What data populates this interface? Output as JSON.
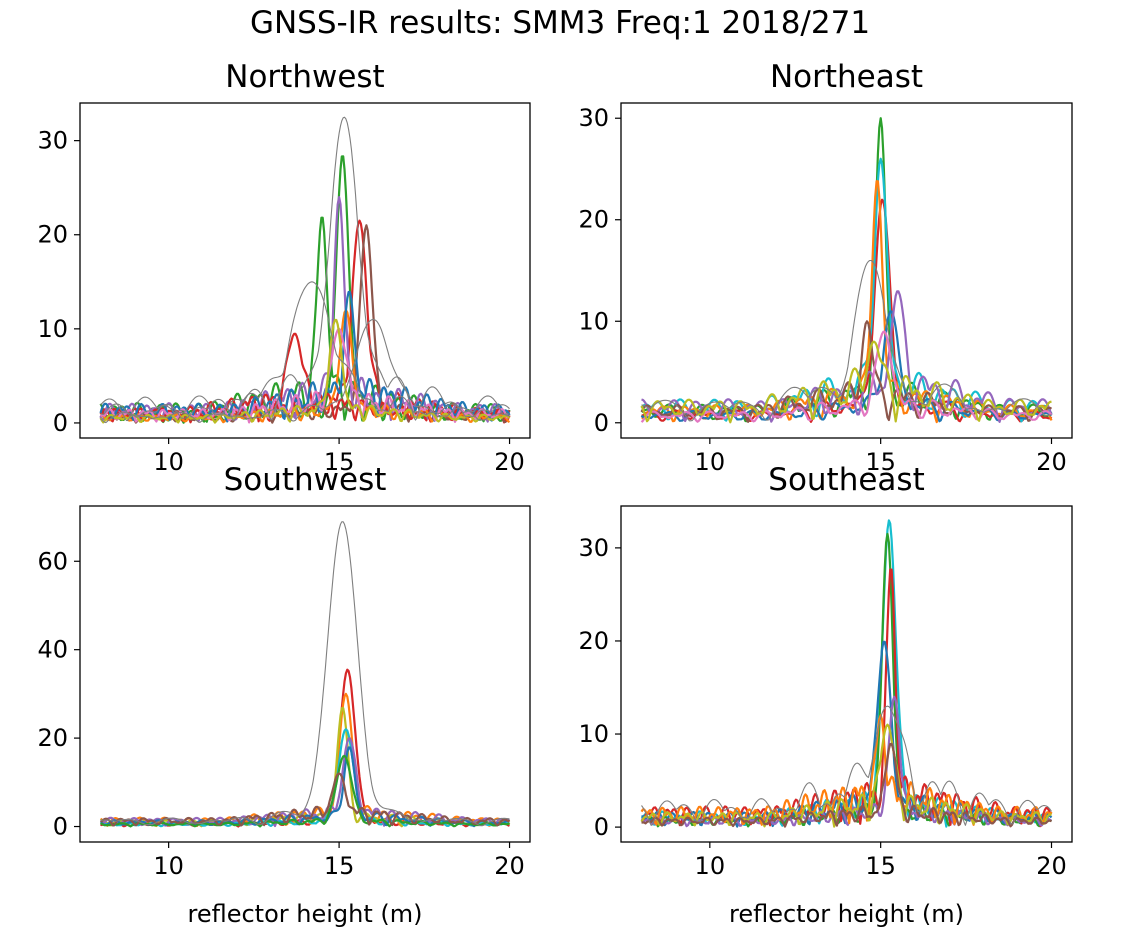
{
  "figure": {
    "suptitle": "GNSS-IR results: SMM3 Freq:1 2018/271"
  },
  "palette": [
    "#1f77b4",
    "#ff7f0e",
    "#2ca02c",
    "#d62728",
    "#9467bd",
    "#8c564b",
    "#e377c2",
    "#7f7f7f",
    "#bcbd22",
    "#17becf"
  ],
  "chart_data": [
    {
      "type": "line",
      "title": "Northwest",
      "xlabel": "",
      "ylabel": "",
      "xlim": [
        7.4,
        20.6
      ],
      "ylim": [
        -1.6,
        34.0
      ],
      "xticks": [
        10,
        15,
        20
      ],
      "yticks": [
        0,
        10,
        20,
        30
      ],
      "peak_height_m": 15.1,
      "series": [
        {
          "color": "#2ca02c",
          "width": 2.2,
          "peak": 15.1,
          "amplitude": 28.5
        },
        {
          "color": "#2ca02c",
          "width": 2.2,
          "peak": 14.5,
          "amplitude": 22.0
        },
        {
          "color": "#d62728",
          "width": 2.2,
          "peak": 15.6,
          "amplitude": 21.5
        },
        {
          "color": "#8c564b",
          "width": 2.2,
          "peak": 15.8,
          "amplitude": 21.0
        },
        {
          "color": "#9467bd",
          "width": 2.2,
          "peak": 15.0,
          "amplitude": 24.0
        },
        {
          "color": "#d62728",
          "width": 2.2,
          "peak": 13.7,
          "amplitude": 9.5
        },
        {
          "color": "#ff7f0e",
          "width": 2.2,
          "peak": 15.2,
          "amplitude": 12.0
        },
        {
          "color": "#1f77b4",
          "width": 2.2,
          "peak": 15.3,
          "amplitude": 14.0
        },
        {
          "color": "#e377c2",
          "width": 2.2,
          "peak": 15.0,
          "amplitude": 10.0
        },
        {
          "color": "#bcbd22",
          "width": 2.2,
          "peak": 14.9,
          "amplitude": 11.0
        },
        {
          "color": "#7f7f7f",
          "width": 1.1,
          "peak": 15.15,
          "amplitude": 32.5
        },
        {
          "color": "#7f7f7f",
          "width": 1.1,
          "peak": 14.2,
          "amplitude": 15.0
        },
        {
          "color": "#7f7f7f",
          "width": 1.1,
          "peak": 16.0,
          "amplitude": 11.0
        }
      ]
    },
    {
      "type": "line",
      "title": "Northeast",
      "xlabel": "",
      "ylabel": "",
      "xlim": [
        7.4,
        20.6
      ],
      "ylim": [
        -1.5,
        31.5
      ],
      "xticks": [
        10,
        15,
        20
      ],
      "yticks": [
        0,
        10,
        20,
        30
      ],
      "peak_height_m": 15.0,
      "series": [
        {
          "color": "#2ca02c",
          "width": 2.2,
          "peak": 15.0,
          "amplitude": 30.0
        },
        {
          "color": "#d62728",
          "width": 2.2,
          "peak": 15.05,
          "amplitude": 22.0
        },
        {
          "color": "#17becf",
          "width": 2.2,
          "peak": 15.0,
          "amplitude": 26.0
        },
        {
          "color": "#ff7f0e",
          "width": 2.2,
          "peak": 14.9,
          "amplitude": 24.0
        },
        {
          "color": "#1f77b4",
          "width": 2.2,
          "peak": 15.3,
          "amplitude": 11.0
        },
        {
          "color": "#9467bd",
          "width": 2.2,
          "peak": 15.5,
          "amplitude": 13.0
        },
        {
          "color": "#8c564b",
          "width": 2.2,
          "peak": 14.6,
          "amplitude": 10.0
        },
        {
          "color": "#e377c2",
          "width": 2.2,
          "peak": 15.1,
          "amplitude": 9.0
        },
        {
          "color": "#bcbd22",
          "width": 2.2,
          "peak": 14.8,
          "amplitude": 8.0
        },
        {
          "color": "#7f7f7f",
          "width": 1.1,
          "peak": 14.7,
          "amplitude": 16.0
        }
      ]
    },
    {
      "type": "line",
      "title": "Southwest",
      "xlabel": "reflector height (m)",
      "ylabel": "",
      "xlim": [
        7.4,
        20.6
      ],
      "ylim": [
        -3.5,
        72.5
      ],
      "xticks": [
        10,
        15,
        20
      ],
      "yticks": [
        0,
        20,
        40,
        60
      ],
      "peak_height_m": 15.2,
      "series": [
        {
          "color": "#d62728",
          "width": 2.2,
          "peak": 15.25,
          "amplitude": 35.5
        },
        {
          "color": "#ff7f0e",
          "width": 2.2,
          "peak": 15.2,
          "amplitude": 30.0
        },
        {
          "color": "#bcbd22",
          "width": 2.2,
          "peak": 15.1,
          "amplitude": 27.0
        },
        {
          "color": "#17becf",
          "width": 2.2,
          "peak": 15.2,
          "amplitude": 22.0
        },
        {
          "color": "#9467bd",
          "width": 2.2,
          "peak": 15.3,
          "amplitude": 20.0
        },
        {
          "color": "#1f77b4",
          "width": 2.2,
          "peak": 15.3,
          "amplitude": 18.0
        },
        {
          "color": "#2ca02c",
          "width": 2.2,
          "peak": 15.15,
          "amplitude": 16.0
        },
        {
          "color": "#8c564b",
          "width": 2.2,
          "peak": 15.0,
          "amplitude": 12.0
        },
        {
          "color": "#7f7f7f",
          "width": 1.1,
          "peak": 15.1,
          "amplitude": 69.0
        }
      ]
    },
    {
      "type": "line",
      "title": "Southeast",
      "xlabel": "reflector height (m)",
      "ylabel": "",
      "xlim": [
        7.4,
        20.6
      ],
      "ylim": [
        -1.6,
        34.5
      ],
      "xticks": [
        10,
        15,
        20
      ],
      "yticks": [
        0,
        10,
        20,
        30
      ],
      "peak_height_m": 15.25,
      "series": [
        {
          "color": "#17becf",
          "width": 2.2,
          "peak": 15.25,
          "amplitude": 33.0
        },
        {
          "color": "#2ca02c",
          "width": 2.2,
          "peak": 15.2,
          "amplitude": 31.5
        },
        {
          "color": "#d62728",
          "width": 2.2,
          "peak": 15.3,
          "amplitude": 28.0
        },
        {
          "color": "#1f77b4",
          "width": 2.2,
          "peak": 15.1,
          "amplitude": 20.0
        },
        {
          "color": "#9467bd",
          "width": 2.2,
          "peak": 15.4,
          "amplitude": 14.0
        },
        {
          "color": "#ff7f0e",
          "width": 2.2,
          "peak": 15.0,
          "amplitude": 12.0
        },
        {
          "color": "#bcbd22",
          "width": 2.2,
          "peak": 15.2,
          "amplitude": 11.0
        },
        {
          "color": "#8c564b",
          "width": 2.2,
          "peak": 15.3,
          "amplitude": 9.0
        },
        {
          "color": "#7f7f7f",
          "width": 1.1,
          "peak": 15.2,
          "amplitude": 13.0
        }
      ]
    }
  ]
}
